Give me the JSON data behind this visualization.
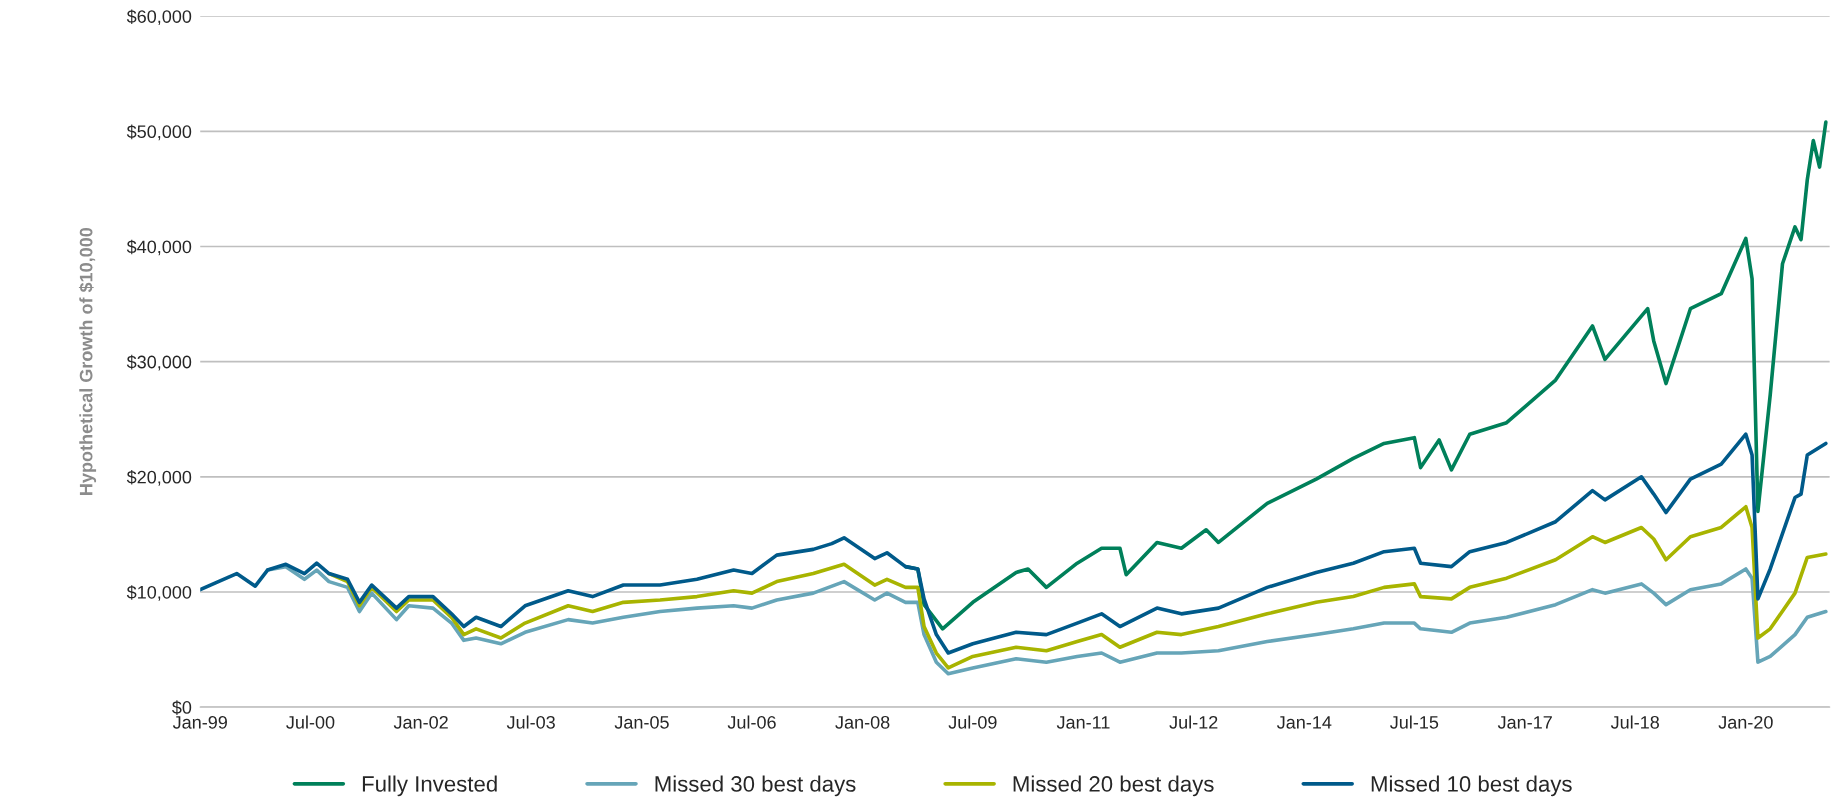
{
  "chart_data": {
    "type": "line",
    "ylabel": "Hypothetical Growth of $10,000",
    "xlim": [
      "1999-01-01",
      "2021-02-20"
    ],
    "xticks": [
      {
        "value": "1999-01-01",
        "label": "Jan-99"
      },
      {
        "value": "2000-07-01",
        "label": "Jul-00"
      },
      {
        "value": "2002-01-01",
        "label": "Jan-02"
      },
      {
        "value": "2003-07-01",
        "label": "Jul-03"
      },
      {
        "value": "2005-01-01",
        "label": "Jan-05"
      },
      {
        "value": "2006-07-01",
        "label": "Jul-06"
      },
      {
        "value": "2008-01-01",
        "label": "Jan-08"
      },
      {
        "value": "2009-07-01",
        "label": "Jul-09"
      },
      {
        "value": "2011-01-01",
        "label": "Jan-11"
      },
      {
        "value": "2012-07-01",
        "label": "Jul-12"
      },
      {
        "value": "2014-01-01",
        "label": "Jan-14"
      },
      {
        "value": "2015-07-01",
        "label": "Jul-15"
      },
      {
        "value": "2017-01-01",
        "label": "Jan-17"
      },
      {
        "value": "2018-07-01",
        "label": "Jul-18"
      },
      {
        "value": "2020-01-01",
        "label": "Jan-20"
      }
    ],
    "ylim": [
      0,
      60000
    ],
    "yticks": [
      {
        "value": 0,
        "label": "$0"
      },
      {
        "value": 10000,
        "label": "$10,000"
      },
      {
        "value": 20000,
        "label": "$20,000"
      },
      {
        "value": 30000,
        "label": "$30,000"
      },
      {
        "value": 40000,
        "label": "$40,000"
      },
      {
        "value": 50000,
        "label": "$50,000"
      },
      {
        "value": 60000,
        "label": "$60,000"
      }
    ],
    "grid": "y",
    "legend": "bottom",
    "marker": "none",
    "line_style": "solid",
    "series": [
      {
        "name": "Fully Invested",
        "color": "#00805a",
        "x": [
          "2008-08",
          "2008-10",
          "2008-11",
          "2009-02",
          "2009-07",
          "2010-02",
          "2010-04",
          "2010-07",
          "2010-12",
          "2011-04",
          "2011-07",
          "2011-08",
          "2012-01",
          "2012-05",
          "2012-09",
          "2012-11",
          "2013-07",
          "2014-03",
          "2014-09",
          "2015-02",
          "2015-07",
          "2015-08",
          "2015-11",
          "2016-01",
          "2016-04",
          "2016-10",
          "2017-06",
          "2017-12",
          "2018-02",
          "2018-09",
          "2018-10",
          "2018-12",
          "2019-04",
          "2019-09",
          "2020-01",
          "2020-02",
          "2020-03",
          "2020-05",
          "2020-07",
          "2020-09",
          "2020-10",
          "2020-11",
          "2020-12",
          "2021-01",
          "2021-02"
        ],
        "values": [
          12200,
          12000,
          8900,
          6800,
          9100,
          11700,
          12000,
          10400,
          12500,
          13800,
          13800,
          11500,
          14300,
          13800,
          15400,
          14300,
          17700,
          19800,
          21600,
          22900,
          23400,
          20800,
          23200,
          20600,
          23700,
          24700,
          28400,
          33100,
          30200,
          34600,
          31800,
          28100,
          34600,
          35900,
          40700,
          37200,
          17000,
          27100,
          38500,
          41700,
          40600,
          45800,
          49200,
          46900,
          50800
        ]
      },
      {
        "name": "Missed 30 best days",
        "color": "#66a5b8",
        "x": [
          "1999-12",
          "2000-03",
          "2000-06",
          "2000-08",
          "2000-10",
          "2001-01",
          "2001-03",
          "2001-05",
          "2001-09",
          "2001-11",
          "2002-03",
          "2002-06",
          "2002-08",
          "2002-10",
          "2003-02",
          "2003-06",
          "2004-01",
          "2004-05",
          "2004-10",
          "2005-04",
          "2005-10",
          "2006-04",
          "2006-07",
          "2006-11",
          "2007-05",
          "2007-10",
          "2008-03",
          "2008-05",
          "2008-08",
          "2008-10",
          "2008-11",
          "2009-01",
          "2009-03",
          "2009-07",
          "2010-02",
          "2010-07",
          "2010-12",
          "2011-04",
          "2011-07",
          "2012-01",
          "2012-05",
          "2012-11",
          "2013-07",
          "2014-03",
          "2014-09",
          "2015-02",
          "2015-07",
          "2015-08",
          "2016-01",
          "2016-04",
          "2016-10",
          "2017-06",
          "2017-12",
          "2018-02",
          "2018-08",
          "2018-10",
          "2018-12",
          "2019-04",
          "2019-09",
          "2020-01",
          "2020-02",
          "2020-03",
          "2020-05",
          "2020-09",
          "2020-11",
          "2021-02"
        ],
        "values": [
          11900,
          12200,
          11100,
          11900,
          10900,
          10400,
          8300,
          9900,
          7600,
          8800,
          8600,
          7300,
          5800,
          6000,
          5500,
          6500,
          7600,
          7300,
          7800,
          8300,
          8600,
          8800,
          8600,
          9300,
          9900,
          10900,
          9300,
          9900,
          9100,
          9100,
          6300,
          3900,
          2900,
          3400,
          4200,
          3900,
          4400,
          4700,
          3900,
          4700,
          4700,
          4900,
          5700,
          6300,
          6800,
          7300,
          7300,
          6800,
          6500,
          7300,
          7800,
          8900,
          10200,
          9900,
          10700,
          9900,
          8900,
          10200,
          10700,
          12000,
          11200,
          3900,
          4400,
          6300,
          7800,
          8300
        ]
      },
      {
        "name": "Missed 20 best days",
        "color": "#a8b400",
        "x": [
          "2000-10",
          "2001-01",
          "2001-03",
          "2001-05",
          "2001-09",
          "2001-11",
          "2002-03",
          "2002-06",
          "2002-08",
          "2002-10",
          "2003-02",
          "2003-06",
          "2004-01",
          "2004-05",
          "2004-10",
          "2005-04",
          "2005-10",
          "2006-04",
          "2006-07",
          "2006-11",
          "2007-05",
          "2007-10",
          "2008-03",
          "2008-05",
          "2008-08",
          "2008-10",
          "2008-11",
          "2009-01",
          "2009-03",
          "2009-07",
          "2010-02",
          "2010-07",
          "2010-12",
          "2011-04",
          "2011-07",
          "2012-01",
          "2012-05",
          "2012-11",
          "2013-07",
          "2014-03",
          "2014-09",
          "2015-02",
          "2015-07",
          "2015-08",
          "2016-01",
          "2016-04",
          "2016-10",
          "2017-06",
          "2017-12",
          "2018-02",
          "2018-08",
          "2018-10",
          "2018-12",
          "2019-04",
          "2019-09",
          "2020-01",
          "2020-02",
          "2020-03",
          "2020-05",
          "2020-09",
          "2020-11",
          "2021-02"
        ],
        "values": [
          11600,
          10900,
          8800,
          10400,
          8300,
          9300,
          9300,
          7800,
          6300,
          6800,
          6000,
          7300,
          8800,
          8300,
          9100,
          9300,
          9600,
          10100,
          9900,
          10900,
          11600,
          12400,
          10600,
          11100,
          10400,
          10400,
          7000,
          4700,
          3400,
          4400,
          5200,
          4900,
          5700,
          6300,
          5200,
          6500,
          6300,
          7000,
          8100,
          9100,
          9600,
          10400,
          10700,
          9600,
          9400,
          10400,
          11200,
          12800,
          14800,
          14300,
          15600,
          14600,
          12800,
          14800,
          15600,
          17400,
          15600,
          6000,
          6800,
          9900,
          13000,
          13300
        ]
      },
      {
        "name": "Missed 10 best days",
        "color": "#005a8a",
        "x": [
          "1999-01",
          "1999-04",
          "1999-07",
          "1999-10",
          "1999-12",
          "2000-03",
          "2000-06",
          "2000-08",
          "2000-10",
          "2001-01",
          "2001-03",
          "2001-05",
          "2001-09",
          "2001-11",
          "2002-03",
          "2002-06",
          "2002-08",
          "2002-10",
          "2003-02",
          "2003-06",
          "2004-01",
          "2004-05",
          "2004-10",
          "2005-04",
          "2005-10",
          "2006-04",
          "2006-07",
          "2006-11",
          "2007-05",
          "2007-08",
          "2007-10",
          "2008-03",
          "2008-05",
          "2008-08",
          "2008-10",
          "2008-11",
          "2009-01",
          "2009-03",
          "2009-07",
          "2010-02",
          "2010-07",
          "2010-12",
          "2011-04",
          "2011-07",
          "2012-01",
          "2012-05",
          "2012-11",
          "2013-07",
          "2014-03",
          "2014-09",
          "2015-02",
          "2015-07",
          "2015-08",
          "2016-01",
          "2016-04",
          "2016-10",
          "2017-06",
          "2017-12",
          "2018-02",
          "2018-08",
          "2018-10",
          "2018-12",
          "2019-04",
          "2019-09",
          "2020-01",
          "2020-02",
          "2020-03",
          "2020-05",
          "2020-09",
          "2020-10",
          "2020-11",
          "2021-02"
        ],
        "values": [
          10200,
          10900,
          11600,
          10500,
          11900,
          12400,
          11600,
          12500,
          11600,
          11100,
          9100,
          10600,
          8600,
          9600,
          9600,
          8100,
          7000,
          7800,
          7000,
          8800,
          10100,
          9600,
          10600,
          10600,
          11100,
          11900,
          11600,
          13200,
          13700,
          14200,
          14700,
          12900,
          13400,
          12200,
          12000,
          9400,
          6300,
          4700,
          5500,
          6500,
          6300,
          7300,
          8100,
          7000,
          8600,
          8100,
          8600,
          10400,
          11700,
          12500,
          13500,
          13800,
          12500,
          12200,
          13500,
          14300,
          16100,
          18800,
          18000,
          20000,
          18500,
          16900,
          19800,
          21100,
          23700,
          21900,
          9400,
          12000,
          18200,
          18500,
          21900,
          22900
        ]
      }
    ]
  }
}
